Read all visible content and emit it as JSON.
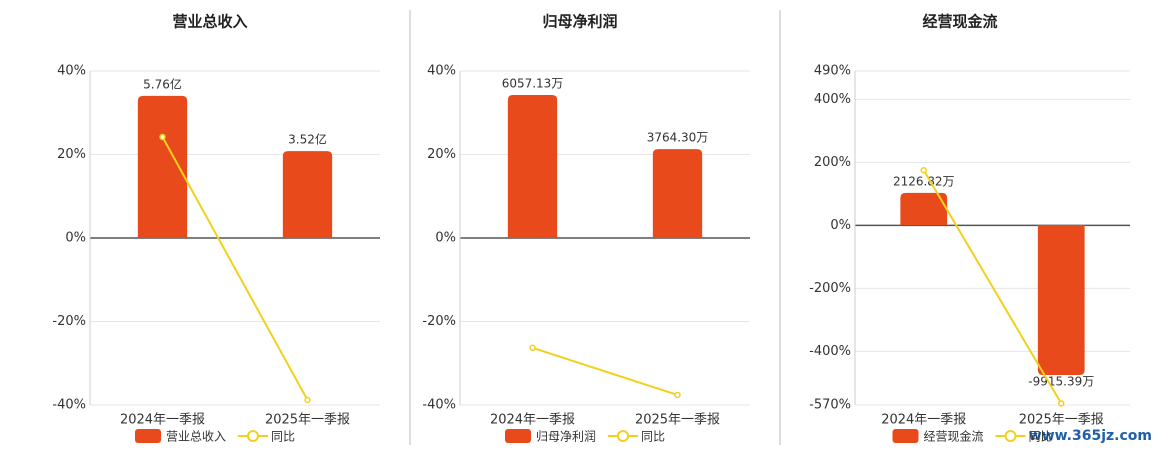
{
  "chart_data": [
    {
      "type": "bar",
      "title": "营业总收入",
      "categories": [
        "2024年一季报",
        "2025年一季报"
      ],
      "ylim": [
        -40,
        40
      ],
      "yticks": [
        {
          "value": -40,
          "label": "-40%"
        },
        {
          "value": -20,
          "label": "-20%"
        },
        {
          "value": 0,
          "label": "0%"
        },
        {
          "value": 20,
          "label": "20%"
        },
        {
          "value": 40,
          "label": "40%"
        }
      ],
      "y2lim": [
        -6.77,
        6.77
      ],
      "grid": true,
      "series": [
        {
          "name": "营业总收入",
          "type": "bar",
          "axis": "y2",
          "color": "#e84a1b",
          "values": [
            5.76,
            3.52
          ],
          "value_labels": [
            "5.76亿",
            "3.52亿"
          ]
        },
        {
          "name": "同比",
          "type": "line",
          "color": "#f2d01e",
          "values": [
            24.2,
            -38.8
          ]
        }
      ]
    },
    {
      "type": "bar",
      "title": "归母净利润",
      "categories": [
        "2024年一季报",
        "2025年一季报"
      ],
      "ylim": [
        -40,
        40
      ],
      "yticks": [
        {
          "value": -40,
          "label": "-40%"
        },
        {
          "value": -20,
          "label": "-20%"
        },
        {
          "value": 0,
          "label": "0%"
        },
        {
          "value": 20,
          "label": "20%"
        },
        {
          "value": 40,
          "label": "40%"
        }
      ],
      "y2lim": [
        -7074,
        7074
      ],
      "grid": true,
      "series": [
        {
          "name": "归母净利润",
          "type": "bar",
          "axis": "y2",
          "color": "#e84a1b",
          "values": [
            6057.13,
            3764.3
          ],
          "value_labels": [
            "6057.13万",
            "3764.30万"
          ]
        },
        {
          "name": "同比",
          "type": "line",
          "color": "#f2d01e",
          "values": [
            -26.3,
            -37.6
          ]
        }
      ]
    },
    {
      "type": "bar",
      "title": "经营现金流",
      "categories": [
        "2024年一季报",
        "2025年一季报"
      ],
      "ylim": [
        -570,
        490
      ],
      "yticks": [
        {
          "value": -570,
          "label": "-570%"
        },
        {
          "value": -400,
          "label": "-400%"
        },
        {
          "value": -200,
          "label": "-200%"
        },
        {
          "value": 0,
          "label": "0%"
        },
        {
          "value": 200,
          "label": "200%"
        },
        {
          "value": 400,
          "label": "400%"
        },
        {
          "value": 490,
          "label": "490%"
        }
      ],
      "y2lim": [
        -11900,
        10180
      ],
      "grid": true,
      "series": [
        {
          "name": "经营现金流",
          "type": "bar",
          "axis": "y2",
          "color": "#e84a1b",
          "values": [
            2126.82,
            -9915.39
          ],
          "value_labels": [
            "2126.82万",
            "-9915.39万"
          ]
        },
        {
          "name": "同比",
          "type": "line",
          "color": "#f2d01e",
          "values": [
            175,
            -565
          ]
        }
      ]
    }
  ],
  "watermark": "www.365jz.com"
}
